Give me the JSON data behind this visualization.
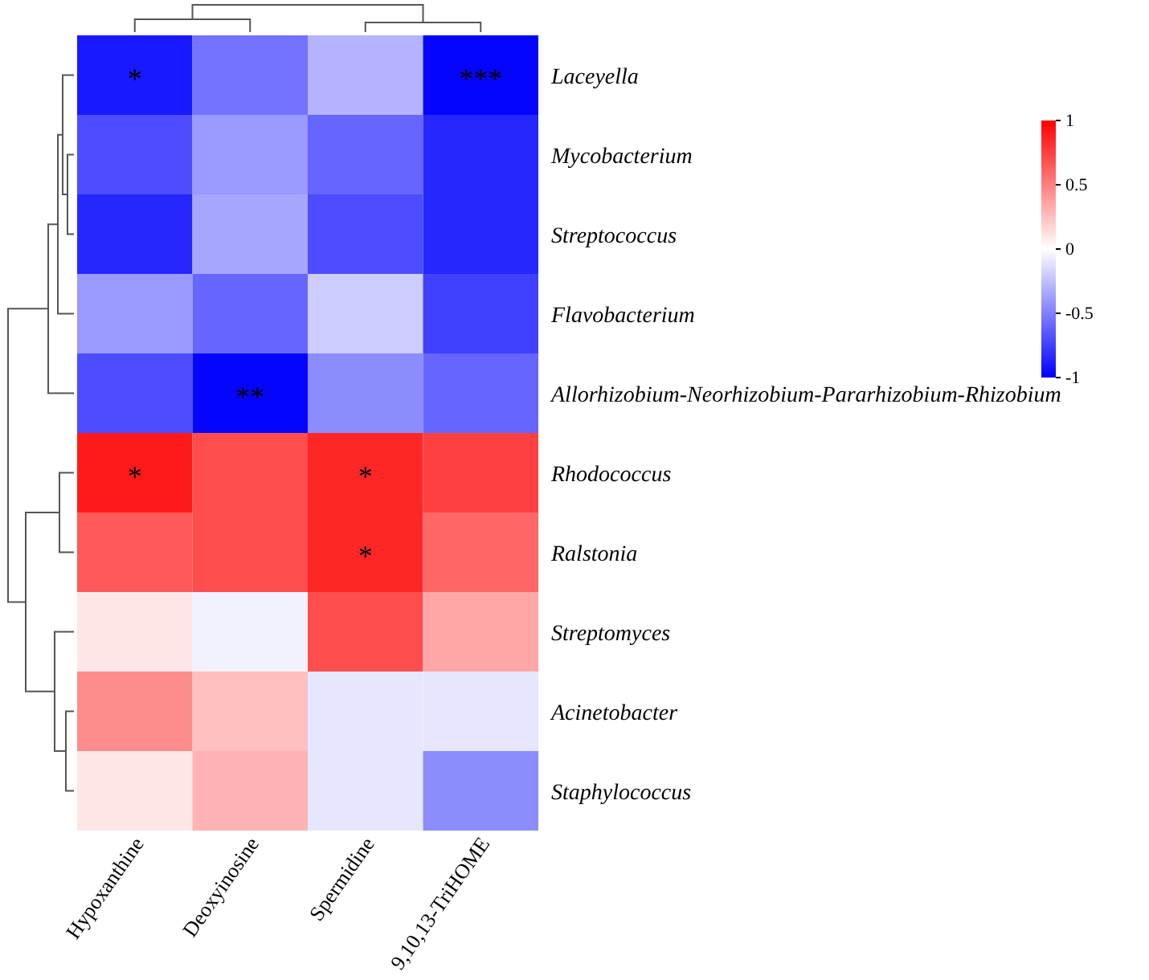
{
  "chart_data": {
    "type": "heatmap",
    "categories": [
      "Hypoxanthine",
      "Deoxyinosine",
      "Spermidine",
      "9,10,13-TriHOME"
    ],
    "y_categories": [
      "Laceyella",
      "Mycobacterium",
      "Streptococcus",
      "Flavobacterium",
      "Allorhizobium-Neorhizobium-Pararhizobium-Rhizobium",
      "Rhodococcus",
      "Ralstonia",
      "Streptomyces",
      "Acinetobacter",
      "Staphylococcus"
    ],
    "cells": [
      [
        -0.9,
        -0.55,
        -0.3,
        -0.98
      ],
      [
        -0.7,
        -0.4,
        -0.6,
        -0.85
      ],
      [
        -0.85,
        -0.35,
        -0.7,
        -0.85
      ],
      [
        -0.4,
        -0.6,
        -0.2,
        -0.75
      ],
      [
        -0.7,
        -0.98,
        -0.45,
        -0.6
      ],
      [
        0.9,
        0.7,
        0.85,
        0.75
      ],
      [
        0.65,
        0.7,
        0.85,
        0.6
      ],
      [
        0.1,
        -0.05,
        0.7,
        0.35
      ],
      [
        0.45,
        0.25,
        -0.1,
        -0.1
      ],
      [
        0.1,
        0.3,
        -0.1,
        -0.45
      ]
    ],
    "cell_labels": [
      [
        "*",
        null,
        null,
        "***"
      ],
      [
        null,
        null,
        null,
        null
      ],
      [
        null,
        null,
        null,
        null
      ],
      [
        null,
        null,
        null,
        null
      ],
      [
        null,
        "**",
        null,
        null
      ],
      [
        "*",
        null,
        "*",
        null
      ],
      [
        null,
        null,
        "*",
        null
      ],
      [
        null,
        null,
        null,
        null
      ],
      [
        null,
        null,
        null,
        null
      ],
      [
        null,
        null,
        null,
        null
      ]
    ],
    "clim": [
      -1,
      1
    ],
    "cticks": [
      -1,
      -0.5,
      0,
      0.5,
      1
    ]
  }
}
